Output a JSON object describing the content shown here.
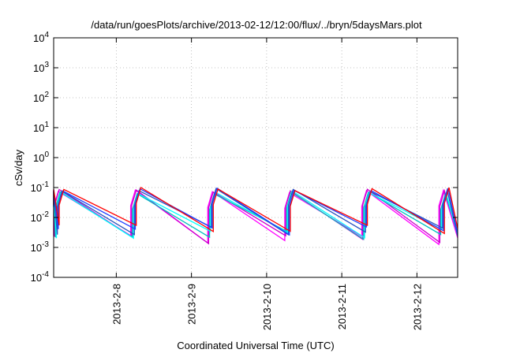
{
  "chart_data": {
    "type": "line",
    "title": "/data/run/goesPlots/archive/2013-02-12/12:00/flux/../bryn/5daysMars.plot",
    "xlabel": "Coordinated Universal Time (UTC)",
    "ylabel": "cSv/day",
    "y_scale": "log",
    "ylim": [
      0.0001,
      10000
    ],
    "y_ticks": [
      {
        "value": 0.0001,
        "base": "10",
        "exp": "-4"
      },
      {
        "value": 0.001,
        "base": "10",
        "exp": "-3"
      },
      {
        "value": 0.01,
        "base": "10",
        "exp": "-2"
      },
      {
        "value": 0.1,
        "base": "10",
        "exp": "-1"
      },
      {
        "value": 1,
        "base": "10",
        "exp": "0"
      },
      {
        "value": 10,
        "base": "10",
        "exp": "1"
      },
      {
        "value": 100,
        "base": "10",
        "exp": "2"
      },
      {
        "value": 1000,
        "base": "10",
        "exp": "3"
      },
      {
        "value": 10000,
        "base": "10",
        "exp": "4"
      }
    ],
    "xlim": [
      "2013-02-07 04:00",
      "2013-02-12 13:00"
    ],
    "x_ticks": [
      "2013-2-8",
      "2013-2-9",
      "2013-2-10",
      "2013-2-11",
      "2013-2-12"
    ],
    "grid": true,
    "legend": "none",
    "cycle_hours": 24.6,
    "envelope": {
      "peak_max": 0.1,
      "peak_min": 0.03,
      "trough_min": 0.0015
    },
    "series_colors": [
      "#ff00ff",
      "#cc00cc",
      "#00bfbf",
      "#00ffff",
      "#2a52be",
      "#1e40ff",
      "#ff0000"
    ]
  }
}
